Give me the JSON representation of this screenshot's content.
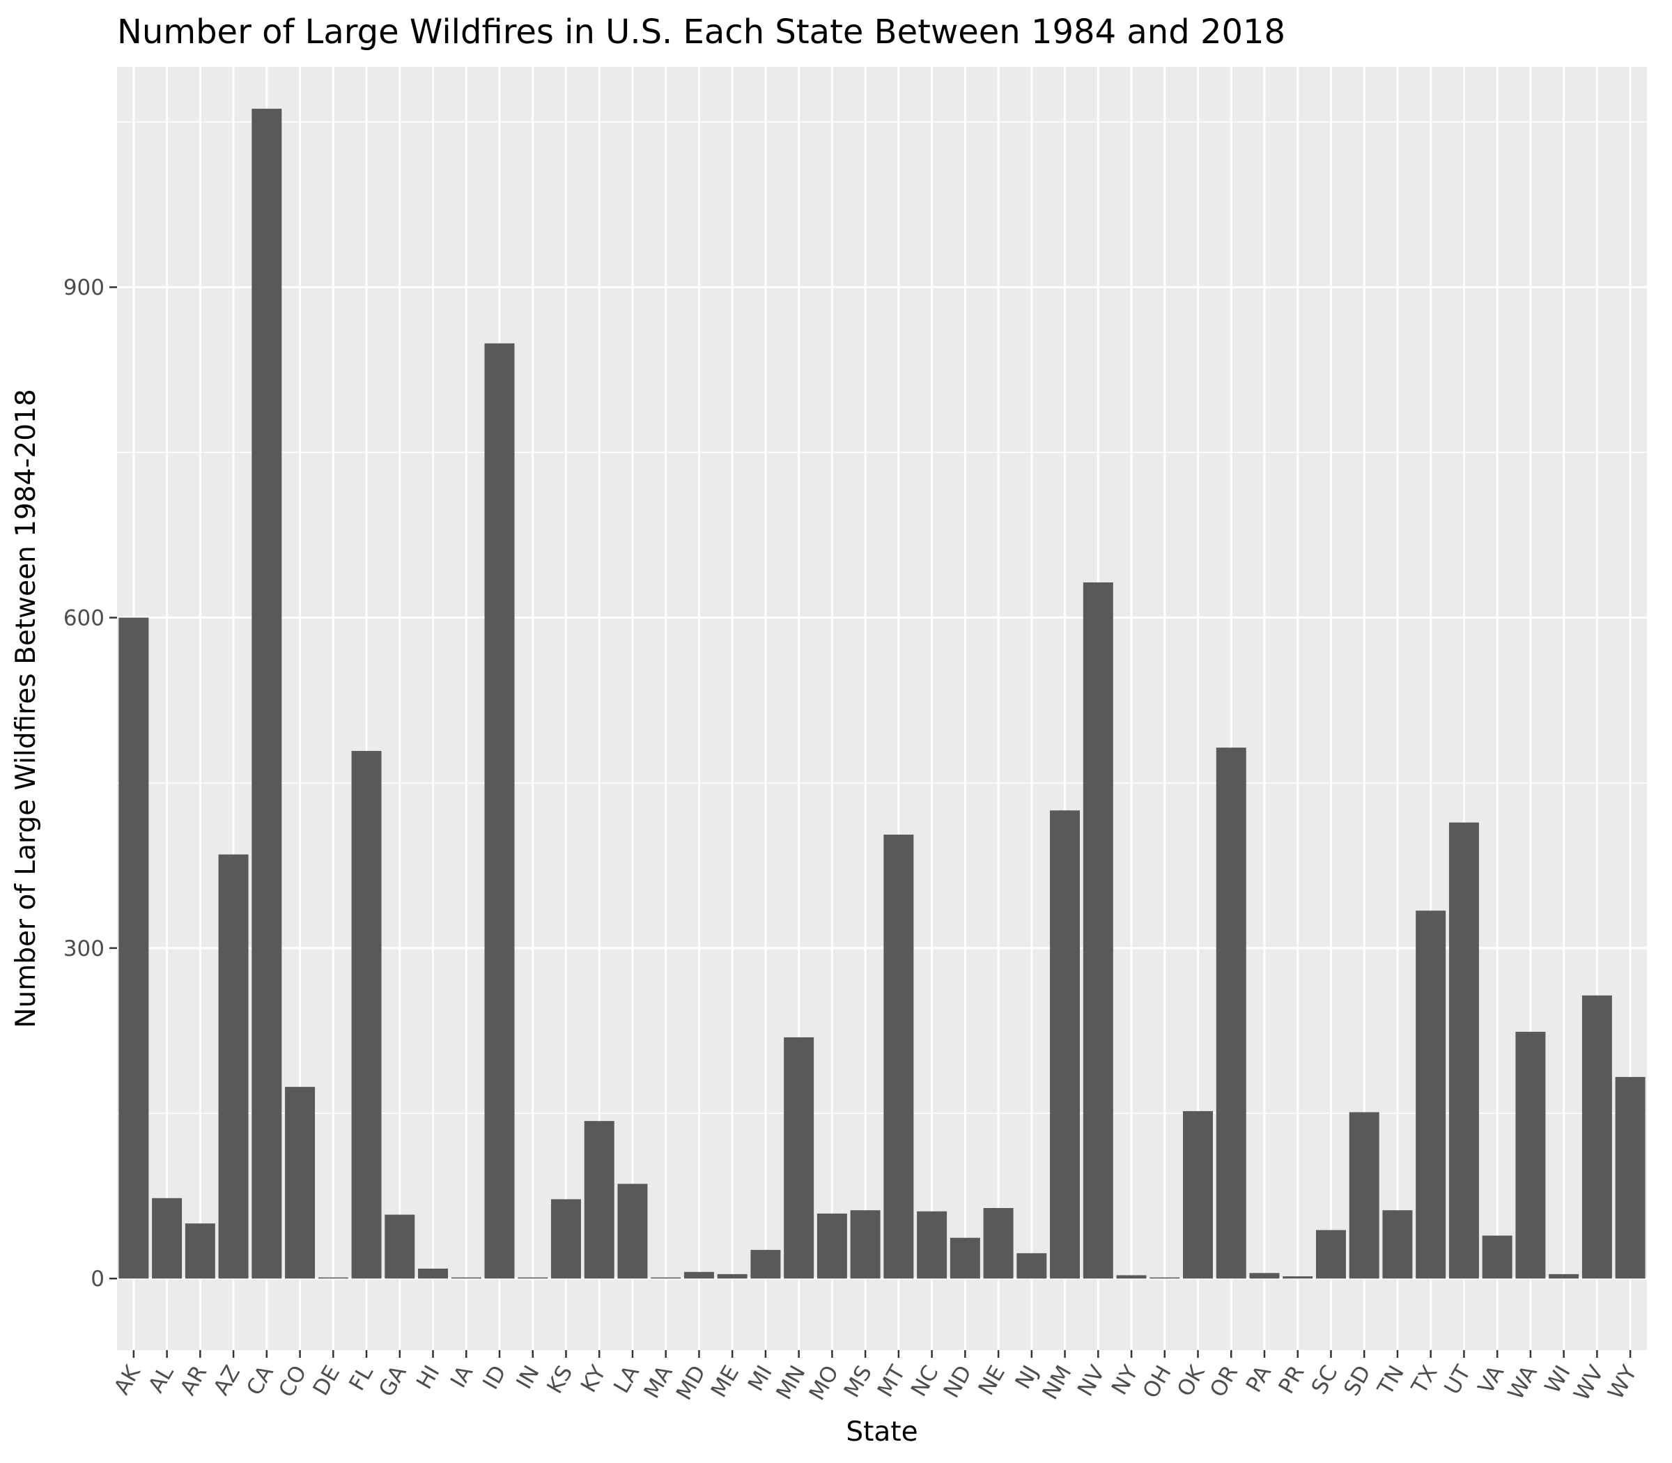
{
  "chart_data": {
    "type": "bar",
    "title": "Number of Large Wildfires in U.S. Each State Between 1984 and 2018",
    "xlabel": "State",
    "ylabel": "Number of Large Wildfires Between 1984-2018",
    "ylim": [
      -65,
      1100
    ],
    "yticks": [
      0,
      300,
      600,
      900
    ],
    "grid": true,
    "legend": "none",
    "categories": [
      "AK",
      "AL",
      "AR",
      "AZ",
      "CA",
      "CO",
      "DE",
      "FL",
      "GA",
      "HI",
      "IA",
      "ID",
      "IN",
      "KS",
      "KY",
      "LA",
      "MA",
      "MD",
      "ME",
      "MI",
      "MN",
      "MO",
      "MS",
      "MT",
      "NC",
      "ND",
      "NE",
      "NJ",
      "NM",
      "NV",
      "NY",
      "OH",
      "OK",
      "OR",
      "PA",
      "PR",
      "SC",
      "SD",
      "TN",
      "TX",
      "UT",
      "VA",
      "WA",
      "WI",
      "WV",
      "WY"
    ],
    "values": [
      600,
      73,
      50,
      385,
      1062,
      174,
      1,
      479,
      58,
      9,
      1,
      849,
      1,
      72,
      143,
      86,
      1,
      6,
      4,
      26,
      219,
      59,
      62,
      403,
      61,
      37,
      64,
      23,
      425,
      632,
      3,
      1,
      152,
      482,
      5,
      2,
      44,
      151,
      62,
      334,
      414,
      39,
      224,
      4,
      257,
      183
    ]
  },
  "colors": {
    "bar": "#595959",
    "panel": "#ebebeb",
    "grid_major": "#ffffff",
    "tick_text": "#4d4d4d",
    "tick_mark": "#333333"
  }
}
